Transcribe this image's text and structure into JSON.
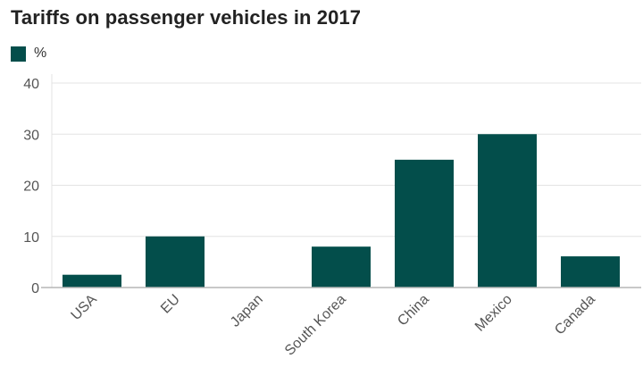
{
  "chart_data": {
    "type": "bar",
    "title": "Tariffs on passenger vehicles in 2017",
    "legend": [
      {
        "label": "%",
        "color": "#034e4b"
      }
    ],
    "legend_position": "top-left",
    "categories": [
      "USA",
      "EU",
      "Japan",
      "South Korea",
      "China",
      "Mexico",
      "Canada"
    ],
    "series": [
      {
        "name": "%",
        "values": [
          2.5,
          10,
          0,
          8,
          25,
          30,
          6.1
        ]
      }
    ],
    "xlabel": "",
    "ylabel": "",
    "ylim": [
      0,
      40
    ],
    "yticks": [
      0,
      10,
      20,
      30,
      40
    ],
    "grid": true,
    "bar_color": "#034e4b"
  }
}
